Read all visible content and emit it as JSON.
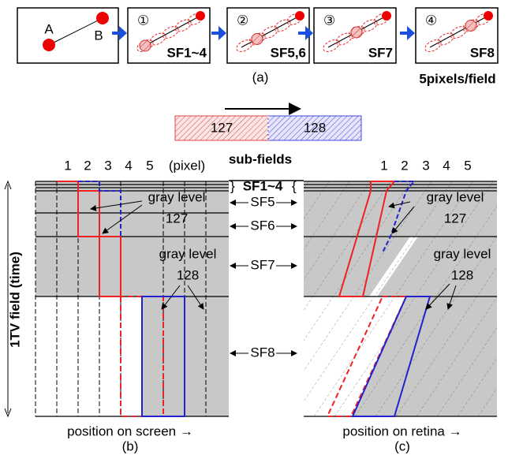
{
  "panel_a": {
    "frames": [
      {
        "point_a": "A",
        "point_b": "B"
      },
      {
        "number": "①",
        "caption": "SF1~4"
      },
      {
        "number": "②",
        "caption": "SF5,6"
      },
      {
        "number": "③",
        "caption": "SF7"
      },
      {
        "number": "④",
        "caption": "SF8"
      }
    ],
    "caption": "(a)",
    "note": "5pixels/field"
  },
  "motion_bar": {
    "left": "127",
    "right": "128"
  },
  "header": {
    "pixels": [
      "1",
      "2",
      "3",
      "4",
      "5"
    ],
    "pixel_unit": "(pixel)",
    "sub_fields_title": "sub-fields",
    "sf1_4": "SF1~4"
  },
  "sub_field_labels": [
    "SF5",
    "SF6",
    "SF7",
    "SF8"
  ],
  "y_axis_label": "1TV field  (time)",
  "panel_b": {
    "pixels": [
      "1",
      "2",
      "3",
      "4",
      "5"
    ],
    "pixel_unit": "(pixel)",
    "gray_127": {
      "label": "gray level",
      "value": "127"
    },
    "gray_128": {
      "label": "gray level",
      "value": "128"
    },
    "x_label": "position on screen →",
    "caption": "(b)"
  },
  "panel_c": {
    "pixels": [
      "1",
      "2",
      "3",
      "4",
      "5"
    ],
    "gray_127": {
      "label": "gray level",
      "value": "127"
    },
    "gray_128": {
      "label": "gray level",
      "value": "128"
    },
    "x_label": "position on retina →",
    "caption": "(c)"
  }
}
